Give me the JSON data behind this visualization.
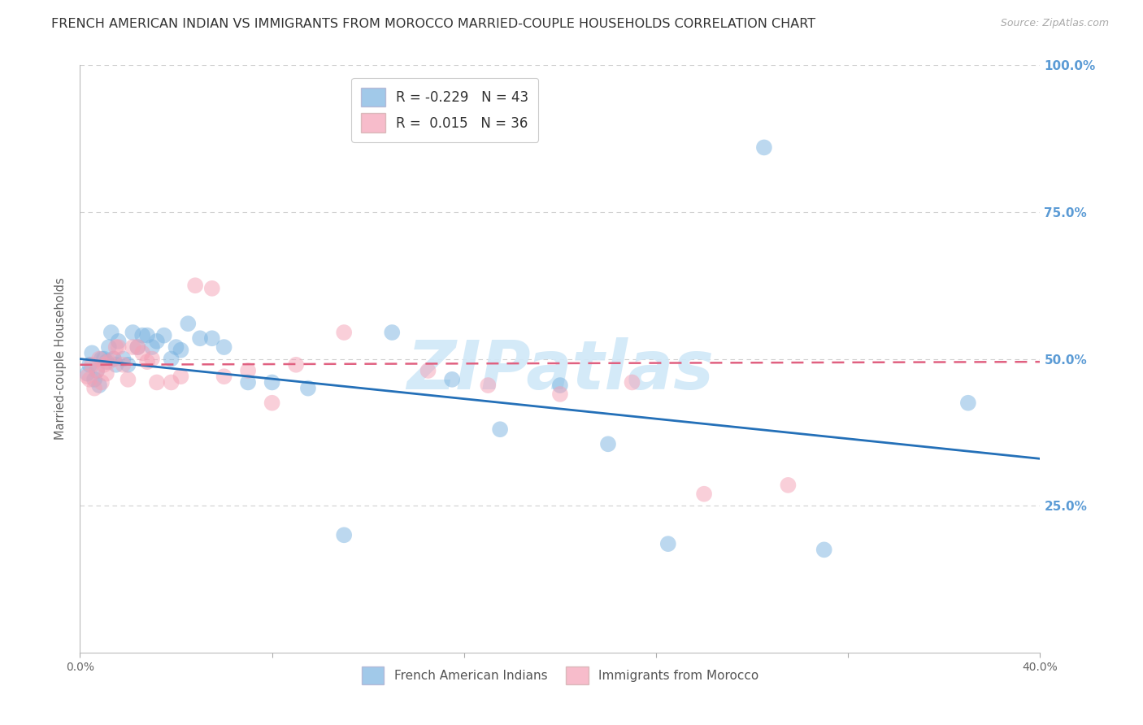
{
  "title": "FRENCH AMERICAN INDIAN VS IMMIGRANTS FROM MOROCCO MARRIED-COUPLE HOUSEHOLDS CORRELATION CHART",
  "source": "Source: ZipAtlas.com",
  "ylabel": "Married-couple Households",
  "xlim": [
    0.0,
    0.4
  ],
  "ylim": [
    0.0,
    1.0
  ],
  "yticks": [
    0.25,
    0.5,
    0.75,
    1.0
  ],
  "ytick_labels": [
    "25.0%",
    "50.0%",
    "75.0%",
    "100.0%"
  ],
  "xtick_labels": [
    "0.0%",
    "",
    "",
    "",
    "",
    "40.0%"
  ],
  "blue_scatter_x": [
    0.003,
    0.004,
    0.005,
    0.006,
    0.007,
    0.008,
    0.009,
    0.01,
    0.011,
    0.012,
    0.013,
    0.014,
    0.015,
    0.016,
    0.018,
    0.02,
    0.022,
    0.024,
    0.026,
    0.028,
    0.03,
    0.032,
    0.035,
    0.038,
    0.04,
    0.042,
    0.045,
    0.05,
    0.055,
    0.06,
    0.07,
    0.08,
    0.095,
    0.11,
    0.13,
    0.155,
    0.175,
    0.2,
    0.22,
    0.245,
    0.285,
    0.31,
    0.37
  ],
  "blue_scatter_y": [
    0.475,
    0.49,
    0.51,
    0.465,
    0.48,
    0.455,
    0.5,
    0.5,
    0.495,
    0.52,
    0.545,
    0.5,
    0.49,
    0.53,
    0.5,
    0.49,
    0.545,
    0.52,
    0.54,
    0.54,
    0.52,
    0.53,
    0.54,
    0.5,
    0.52,
    0.515,
    0.56,
    0.535,
    0.535,
    0.52,
    0.46,
    0.46,
    0.45,
    0.2,
    0.545,
    0.465,
    0.38,
    0.455,
    0.355,
    0.185,
    0.86,
    0.175,
    0.425
  ],
  "pink_scatter_x": [
    0.003,
    0.004,
    0.005,
    0.006,
    0.007,
    0.008,
    0.009,
    0.01,
    0.011,
    0.012,
    0.014,
    0.015,
    0.016,
    0.018,
    0.02,
    0.022,
    0.024,
    0.026,
    0.028,
    0.03,
    0.032,
    0.038,
    0.042,
    0.048,
    0.055,
    0.06,
    0.07,
    0.08,
    0.09,
    0.11,
    0.145,
    0.17,
    0.2,
    0.23,
    0.26,
    0.295
  ],
  "pink_scatter_y": [
    0.47,
    0.465,
    0.49,
    0.45,
    0.48,
    0.5,
    0.46,
    0.49,
    0.475,
    0.495,
    0.5,
    0.52,
    0.52,
    0.49,
    0.465,
    0.52,
    0.52,
    0.51,
    0.495,
    0.5,
    0.46,
    0.46,
    0.47,
    0.625,
    0.62,
    0.47,
    0.48,
    0.425,
    0.49,
    0.545,
    0.48,
    0.455,
    0.44,
    0.46,
    0.27,
    0.285
  ],
  "blue_line_x": [
    0.0,
    0.4
  ],
  "blue_line_y": [
    0.5,
    0.33
  ],
  "pink_line_x": [
    0.0,
    0.4
  ],
  "pink_line_y": [
    0.49,
    0.495
  ],
  "blue_scatter_color": "#7ab3e0",
  "pink_scatter_color": "#f4a0b5",
  "blue_line_color": "#2470b8",
  "pink_line_color": "#e06080",
  "watermark_text": "ZIPatlas",
  "watermark_color": "#d0e8f8",
  "grid_color": "#d0d0d0",
  "background_color": "#ffffff",
  "title_fontsize": 11.5,
  "source_fontsize": 9,
  "axis_label_color": "#888888",
  "right_tick_color": "#5b9bd5",
  "legend_r1": "R = -0.229   N = 43",
  "legend_r2": "R =  0.015   N = 36",
  "legend_r1_color": "#e06060",
  "legend_r2_color": "#e06060",
  "legend_n1_color": "#2060a0",
  "legend_n2_color": "#2060a0"
}
